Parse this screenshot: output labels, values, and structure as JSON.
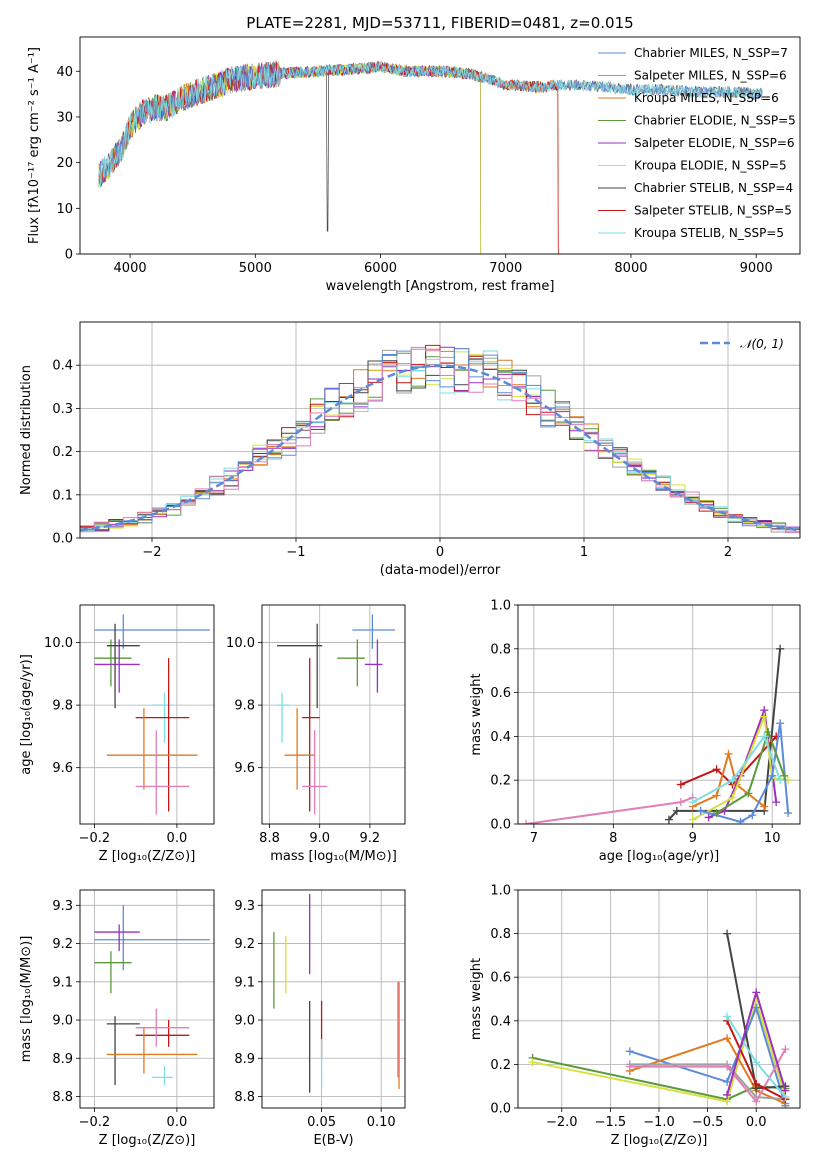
{
  "title": "PLATE=2281, MJD=53711, FIBERID=0481, z=0.015",
  "colors": {
    "chabrier_miles": "#5b8bd9",
    "salpeter_miles": "#a0a0a0",
    "kroupa_miles": "#e07a1f",
    "chabrier_elodie": "#5a9a3c",
    "salpeter_elodie": "#9a2fc0",
    "kroupa_elodie": "#d6e040",
    "chabrier_stelib": "#444444",
    "salpeter_stelib": "#c41616",
    "kroupa_stelib": "#7fdde0",
    "pink": "#e07fb8",
    "gaussian": "#5b8bd9"
  },
  "chart_data": [
    {
      "type": "line",
      "name": "spectrum",
      "xlabel": "wavelength [Angstrom, rest frame]",
      "ylabel": "Flux [fλ10⁻¹⁷ erg cm⁻² s⁻¹ A⁻¹]",
      "xlim": [
        3600,
        9350
      ],
      "ylim": [
        0,
        47.5
      ],
      "xticks": [
        "4000",
        "5000",
        "6000",
        "7000",
        "8000",
        "9000"
      ],
      "yticks": [
        "0",
        "10",
        "20",
        "30",
        "40"
      ],
      "legend": [
        "Chabrier MILES, N_SSP=7",
        "Salpeter MILES, N_SSP=6",
        "Kroupa MILES, N_SSP=6",
        "Chabrier ELODIE, N_SSP=5",
        "Salpeter ELODIE, N_SSP=6",
        "Kroupa ELODIE, N_SSP=5",
        "Chabrier STELIB, N_SSP=4",
        "Salpeter STELIB, N_SSP=5",
        "Kroupa STELIB, N_SSP=5"
      ],
      "continuum": [
        [
          3750,
          17
        ],
        [
          3850,
          20
        ],
        [
          3950,
          24
        ],
        [
          4000,
          28
        ],
        [
          4100,
          31
        ],
        [
          4200,
          32
        ],
        [
          4300,
          32
        ],
        [
          4400,
          34
        ],
        [
          4500,
          35
        ],
        [
          4600,
          36
        ],
        [
          4800,
          38
        ],
        [
          5000,
          39
        ],
        [
          5200,
          39.5
        ],
        [
          5500,
          40
        ],
        [
          5800,
          40.5
        ],
        [
          6000,
          41
        ],
        [
          6200,
          40
        ],
        [
          6500,
          40
        ],
        [
          6700,
          39.5
        ],
        [
          6900,
          38
        ],
        [
          7000,
          37
        ],
        [
          7300,
          36.5
        ],
        [
          7400,
          37
        ],
        [
          7600,
          37
        ],
        [
          7800,
          36.5
        ],
        [
          8000,
          36
        ],
        [
          8200,
          36
        ],
        [
          8500,
          35.5
        ],
        [
          8800,
          35.5
        ],
        [
          9050,
          35
        ]
      ],
      "model_ends": [
        9050,
        9050,
        7420,
        6800,
        6800,
        6800,
        9050,
        7420,
        9050
      ]
    },
    {
      "type": "histogram",
      "name": "residuals",
      "xlabel": "(data-model)/error",
      "ylabel": "Normed distribution",
      "xlim": [
        -2.5,
        2.5
      ],
      "ylim": [
        0,
        0.5
      ],
      "xticks": [
        "−2",
        "−1",
        "0",
        "1",
        "2"
      ],
      "yticks": [
        "0.0",
        "0.1",
        "0.2",
        "0.3",
        "0.4"
      ],
      "legend": [
        "𝒩(0, 1)"
      ]
    },
    {
      "type": "errorbar",
      "name": "age-vs-Z",
      "xlabel": "Z [log₁₀(Z/Z⊙)]",
      "ylabel": "age  [log₁₀(age/yr)]",
      "xlim": [
        -0.235,
        0.09
      ],
      "ylim": [
        9.42,
        10.12
      ],
      "xticks": [
        "−0.2",
        "0.0"
      ],
      "yticks": [
        "9.6",
        "9.8",
        "10.0"
      ],
      "points": [
        {
          "x": -0.13,
          "xlo": -0.2,
          "xhi": 0.08,
          "y": 10.04,
          "ylo": 9.98,
          "yhi": 10.09,
          "c": "chabrier_miles"
        },
        {
          "x": -0.16,
          "xlo": -0.2,
          "xhi": -0.11,
          "y": 9.95,
          "ylo": 9.86,
          "yhi": 10.01,
          "c": "chabrier_elodie"
        },
        {
          "x": -0.14,
          "xlo": -0.2,
          "xhi": -0.09,
          "y": 9.93,
          "ylo": 9.84,
          "yhi": 10.01,
          "c": "salpeter_elodie"
        },
        {
          "x": -0.15,
          "xlo": -0.17,
          "xhi": -0.09,
          "y": 9.99,
          "ylo": 9.79,
          "yhi": 10.06,
          "c": "chabrier_stelib"
        },
        {
          "x": -0.03,
          "xlo": -0.06,
          "xhi": -0.01,
          "y": 9.8,
          "ylo": 9.68,
          "yhi": 9.84,
          "c": "kroupa_stelib"
        },
        {
          "x": -0.02,
          "xlo": -0.1,
          "xhi": 0.03,
          "y": 9.76,
          "ylo": 9.46,
          "yhi": 9.95,
          "c": "salpeter_stelib"
        },
        {
          "x": -0.08,
          "xlo": -0.17,
          "xhi": 0.05,
          "y": 9.64,
          "ylo": 9.53,
          "yhi": 9.79,
          "c": "kroupa_miles"
        },
        {
          "x": -0.05,
          "xlo": -0.1,
          "xhi": 0.03,
          "y": 9.54,
          "ylo": 9.45,
          "yhi": 9.72,
          "c": "pink"
        }
      ]
    },
    {
      "type": "errorbar",
      "name": "age-vs-mass",
      "xlabel": "mass [log₁₀(M/M⊙)]",
      "ylabel": "",
      "xlim": [
        8.77,
        9.34
      ],
      "ylim": [
        9.42,
        10.12
      ],
      "xticks": [
        "8.8",
        "9.0",
        "9.2"
      ],
      "yticks": [
        "9.6",
        "9.8",
        "10.0"
      ],
      "points": [
        {
          "x": 9.21,
          "xlo": 9.13,
          "xhi": 9.3,
          "y": 10.04,
          "ylo": 9.98,
          "yhi": 10.09,
          "c": "chabrier_miles"
        },
        {
          "x": 9.15,
          "xlo": 9.07,
          "xhi": 9.18,
          "y": 9.95,
          "ylo": 9.86,
          "yhi": 10.01,
          "c": "chabrier_elodie"
        },
        {
          "x": 9.23,
          "xlo": 9.18,
          "xhi": 9.25,
          "y": 9.93,
          "ylo": 9.84,
          "yhi": 10.01,
          "c": "salpeter_elodie"
        },
        {
          "x": 8.99,
          "xlo": 8.83,
          "xhi": 9.01,
          "y": 9.99,
          "ylo": 9.79,
          "yhi": 10.06,
          "c": "chabrier_stelib"
        },
        {
          "x": 8.85,
          "xlo": 8.83,
          "xhi": 8.88,
          "y": 9.8,
          "ylo": 9.68,
          "yhi": 9.84,
          "c": "kroupa_stelib"
        },
        {
          "x": 8.96,
          "xlo": 8.93,
          "xhi": 9.0,
          "y": 9.76,
          "ylo": 9.46,
          "yhi": 9.95,
          "c": "salpeter_stelib"
        },
        {
          "x": 8.91,
          "xlo": 8.86,
          "xhi": 8.98,
          "y": 9.64,
          "ylo": 9.53,
          "yhi": 9.79,
          "c": "kroupa_miles"
        },
        {
          "x": 8.98,
          "xlo": 8.93,
          "xhi": 9.03,
          "y": 9.54,
          "ylo": 9.45,
          "yhi": 9.72,
          "c": "pink"
        }
      ]
    },
    {
      "type": "line",
      "name": "mass-weight-vs-age",
      "xlabel": "age  [log₁₀(age/yr)]",
      "ylabel": "mass weight",
      "xlim": [
        6.8,
        10.35
      ],
      "ylim": [
        0,
        1.0
      ],
      "xticks": [
        "7",
        "8",
        "9",
        "10"
      ],
      "yticks": [
        "0.0",
        "0.2",
        "0.4",
        "0.6",
        "0.8",
        "1.0"
      ],
      "series": [
        {
          "c": "pink",
          "points": [
            [
              6.9,
              0.0
            ],
            [
              8.85,
              0.1
            ],
            [
              9.0,
              0.12
            ]
          ]
        },
        {
          "c": "chabrier_stelib",
          "points": [
            [
              8.7,
              0.02
            ],
            [
              8.8,
              0.06
            ],
            [
              9.9,
              0.06
            ],
            [
              10.1,
              0.8
            ]
          ]
        },
        {
          "c": "salpeter_stelib",
          "points": [
            [
              8.85,
              0.18
            ],
            [
              9.3,
              0.25
            ],
            [
              9.5,
              0.18
            ],
            [
              10.05,
              0.4
            ]
          ]
        },
        {
          "c": "kroupa_miles",
          "points": [
            [
              9.0,
              0.08
            ],
            [
              9.3,
              0.13
            ],
            [
              9.45,
              0.32
            ],
            [
              9.55,
              0.18
            ],
            [
              9.9,
              0.08
            ]
          ]
        },
        {
          "c": "salpeter_elodie",
          "points": [
            [
              9.2,
              0.03
            ],
            [
              9.4,
              0.06
            ],
            [
              9.6,
              0.22
            ],
            [
              9.9,
              0.52
            ],
            [
              10.05,
              0.1
            ]
          ]
        },
        {
          "c": "kroupa_elodie",
          "points": [
            [
              9.0,
              0.02
            ],
            [
              9.5,
              0.12
            ],
            [
              9.9,
              0.49
            ],
            [
              10.0,
              0.21
            ],
            [
              10.2,
              0.2
            ]
          ]
        },
        {
          "c": "chabrier_miles",
          "points": [
            [
              9.1,
              0.06
            ],
            [
              9.6,
              0.01
            ],
            [
              9.75,
              0.04
            ],
            [
              10.0,
              0.22
            ],
            [
              10.1,
              0.46
            ],
            [
              10.2,
              0.05
            ]
          ]
        },
        {
          "c": "chabrier_elodie",
          "points": [
            [
              9.3,
              0.05
            ],
            [
              9.7,
              0.14
            ],
            [
              9.95,
              0.42
            ],
            [
              10.15,
              0.22
            ]
          ]
        },
        {
          "c": "kroupa_stelib",
          "points": [
            [
              9.0,
              0.1
            ],
            [
              9.5,
              0.2
            ],
            [
              9.9,
              0.4
            ],
            [
              10.1,
              0.2
            ]
          ]
        }
      ]
    },
    {
      "type": "errorbar",
      "name": "mass-vs-Z",
      "xlabel": "Z [log₁₀(Z/Z⊙)]",
      "ylabel": "mass [log₁₀(M/M⊙)]",
      "xlim": [
        -0.235,
        0.09
      ],
      "ylim": [
        8.77,
        9.34
      ],
      "xticks": [
        "−0.2",
        "0.0"
      ],
      "yticks": [
        "8.8",
        "8.9",
        "9.0",
        "9.1",
        "9.2",
        "9.3"
      ],
      "points": [
        {
          "x": -0.13,
          "xlo": -0.2,
          "xhi": 0.08,
          "y": 9.21,
          "ylo": 9.13,
          "yhi": 9.3,
          "c": "chabrier_miles"
        },
        {
          "x": -0.16,
          "xlo": -0.2,
          "xhi": -0.11,
          "y": 9.15,
          "ylo": 9.07,
          "yhi": 9.18,
          "c": "chabrier_elodie"
        },
        {
          "x": -0.14,
          "xlo": -0.2,
          "xhi": -0.09,
          "y": 9.23,
          "ylo": 9.18,
          "yhi": 9.25,
          "c": "salpeter_elodie"
        },
        {
          "x": -0.15,
          "xlo": -0.17,
          "xhi": -0.09,
          "y": 8.99,
          "ylo": 8.83,
          "yhi": 9.01,
          "c": "chabrier_stelib"
        },
        {
          "x": -0.03,
          "xlo": -0.06,
          "xhi": -0.01,
          "y": 8.85,
          "ylo": 8.83,
          "yhi": 8.88,
          "c": "kroupa_stelib"
        },
        {
          "x": -0.02,
          "xlo": -0.1,
          "xhi": 0.03,
          "y": 8.96,
          "ylo": 8.93,
          "yhi": 9.0,
          "c": "salpeter_stelib"
        },
        {
          "x": -0.08,
          "xlo": -0.17,
          "xhi": 0.05,
          "y": 8.91,
          "ylo": 8.86,
          "yhi": 8.98,
          "c": "kroupa_miles"
        },
        {
          "x": -0.05,
          "xlo": -0.1,
          "xhi": 0.03,
          "y": 8.98,
          "ylo": 8.93,
          "yhi": 9.03,
          "c": "pink"
        }
      ]
    },
    {
      "type": "errorbar",
      "name": "mass-vs-EBV",
      "xlabel": "E(B-V)",
      "ylabel": "",
      "xlim": [
        0.0,
        0.12
      ],
      "ylim": [
        8.77,
        9.34
      ],
      "xticks": [
        "0.05",
        "0.10"
      ],
      "yticks": [
        "8.8",
        "8.9",
        "9.0",
        "9.1",
        "9.2",
        "9.3"
      ],
      "points": [
        {
          "x": 0.01,
          "y": 9.13,
          "ylo": 9.03,
          "yhi": 9.23,
          "c": "chabrier_elodie"
        },
        {
          "x": 0.02,
          "y": 9.15,
          "ylo": 9.07,
          "yhi": 9.22,
          "c": "kroupa_elodie"
        },
        {
          "x": 0.04,
          "y": 9.23,
          "ylo": 9.12,
          "yhi": 9.33,
          "c": "salpeter_elodie"
        },
        {
          "x": 0.04,
          "y": 8.95,
          "ylo": 8.81,
          "yhi": 9.05,
          "c": "chabrier_stelib"
        },
        {
          "x": 0.05,
          "y": 8.95,
          "ylo": 8.9,
          "yhi": 9.05,
          "c": "salpeter_stelib"
        },
        {
          "x": 0.05,
          "y": 8.87,
          "ylo": 8.82,
          "yhi": 8.95,
          "c": "kroupa_stelib"
        },
        {
          "x": 0.115,
          "y": 8.95,
          "ylo": 8.82,
          "yhi": 9.1,
          "c": "kroupa_miles"
        },
        {
          "x": 0.114,
          "y": 8.97,
          "ylo": 8.85,
          "yhi": 9.1,
          "c": "pink"
        }
      ]
    },
    {
      "type": "line",
      "name": "mass-weight-vs-Z",
      "xlabel": "Z [log₁₀(Z/Z⊙)]",
      "ylabel": "mass weight",
      "xlim": [
        -2.45,
        0.45
      ],
      "ylim": [
        0,
        1.0
      ],
      "xticks": [
        "−2.0",
        "−1.5",
        "−1.0",
        "−0.5",
        "0.0"
      ],
      "yticks": [
        "0.0",
        "0.2",
        "0.4",
        "0.6",
        "0.8",
        "1.0"
      ],
      "series": [
        {
          "c": "chabrier_elodie",
          "points": [
            [
              -2.3,
              0.23
            ],
            [
              -0.3,
              0.04
            ],
            [
              0.0,
              0.1
            ],
            [
              0.3,
              0.09
            ]
          ]
        },
        {
          "c": "kroupa_elodie",
          "points": [
            [
              -2.3,
              0.21
            ],
            [
              -0.3,
              0.03
            ],
            [
              0.0,
              0.49
            ],
            [
              0.3,
              0.05
            ]
          ]
        },
        {
          "c": "chabrier_miles",
          "points": [
            [
              -1.3,
              0.26
            ],
            [
              -0.3,
              0.12
            ],
            [
              0.0,
              0.46
            ],
            [
              0.3,
              0.01
            ]
          ]
        },
        {
          "c": "kroupa_miles",
          "points": [
            [
              -1.3,
              0.17
            ],
            [
              -0.3,
              0.32
            ],
            [
              0.0,
              0.08
            ],
            [
              0.3,
              0.02
            ]
          ]
        },
        {
          "c": "salpeter_miles",
          "points": [
            [
              -1.3,
              0.2
            ],
            [
              -0.3,
              0.2
            ],
            [
              0.0,
              0.05
            ],
            [
              0.3,
              0.04
            ]
          ]
        },
        {
          "c": "pink",
          "points": [
            [
              -1.3,
              0.19
            ],
            [
              -0.3,
              0.19
            ],
            [
              0.0,
              0.03
            ],
            [
              0.3,
              0.27
            ]
          ]
        },
        {
          "c": "chabrier_stelib",
          "points": [
            [
              -0.3,
              0.8
            ],
            [
              0.0,
              0.09
            ],
            [
              0.3,
              0.1
            ]
          ]
        },
        {
          "c": "salpeter_stelib",
          "points": [
            [
              -0.3,
              0.4
            ],
            [
              0.0,
              0.11
            ],
            [
              0.3,
              0.04
            ]
          ]
        },
        {
          "c": "kroupa_stelib",
          "points": [
            [
              -0.3,
              0.42
            ],
            [
              0.0,
              0.21
            ],
            [
              0.3,
              0.05
            ]
          ]
        },
        {
          "c": "salpeter_elodie",
          "points": [
            [
              -0.3,
              0.06
            ],
            [
              0.0,
              0.53
            ],
            [
              0.3,
              0.08
            ]
          ]
        }
      ]
    }
  ]
}
